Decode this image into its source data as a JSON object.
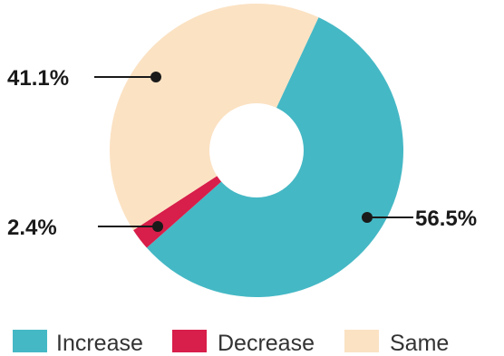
{
  "chart_data": {
    "type": "pie",
    "variant": "donut",
    "title": "",
    "categories": [
      "Increase",
      "Decrease",
      "Same"
    ],
    "values": [
      56.5,
      2.4,
      41.1
    ],
    "labels": [
      "56.5%",
      "2.4%",
      "41.1%"
    ],
    "colors": [
      "#45b8c5",
      "#d81e4a",
      "#fbe2c3"
    ],
    "legend_position": "bottom",
    "start_angle_deg": 25,
    "direction": "clockwise"
  },
  "legend": {
    "items": [
      {
        "label": "Increase",
        "color": "#45b8c5"
      },
      {
        "label": "Decrease",
        "color": "#d81e4a"
      },
      {
        "label": "Same",
        "color": "#fbe2c3"
      }
    ]
  }
}
